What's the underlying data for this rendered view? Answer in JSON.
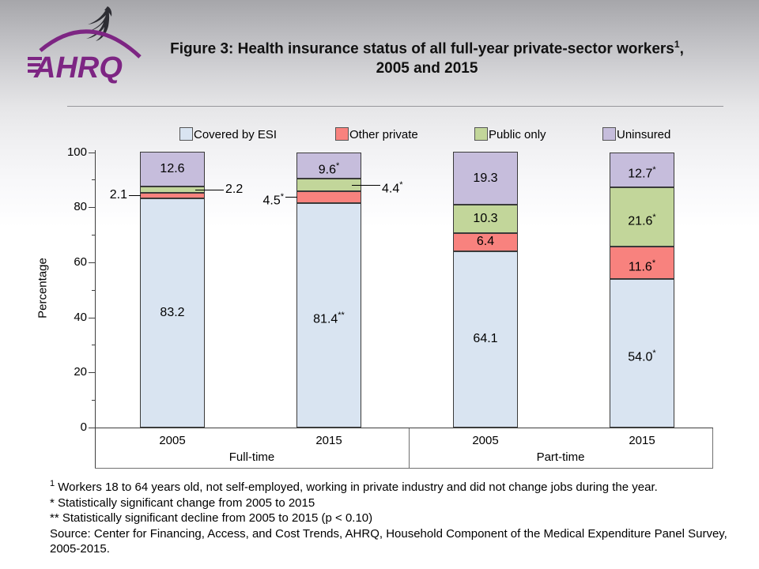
{
  "header": {
    "logo_org": "AHRQ",
    "title_line1": "Figure 3: Health insurance status of all full-year private-sector workers",
    "title_sup": "1",
    "title_after_sup": ",",
    "title_line2": "2005 and 2015"
  },
  "legend": [
    {
      "label": "Covered by ESI",
      "color": "#D9E4F1"
    },
    {
      "label": "Other private",
      "color": "#F8827E"
    },
    {
      "label": "Public only",
      "color": "#C2D69A"
    },
    {
      "label": "Uninsured",
      "color": "#C6BDDC"
    }
  ],
  "chart_data": {
    "type": "bar",
    "subtype": "stacked-vertical",
    "ylabel": "Percentage",
    "ylim": [
      0,
      100
    ],
    "yticks_major": [
      0,
      20,
      40,
      60,
      80,
      100
    ],
    "yticks_minor": [
      10,
      30,
      50,
      70,
      90
    ],
    "grid": false,
    "legend_position": "top",
    "group_labels": [
      "Full-time",
      "Part-time"
    ],
    "categories": [
      "2005",
      "2015",
      "2005",
      "2015"
    ],
    "series_order": [
      "Covered by ESI",
      "Other private",
      "Public only",
      "Uninsured"
    ],
    "series_colors": {
      "Covered by ESI": "#D9E4F1",
      "Other private": "#F8827E",
      "Public only": "#C2D69A",
      "Uninsured": "#C6BDDC"
    },
    "bars": [
      {
        "group": "Full-time",
        "category": "2005",
        "segments": [
          {
            "series": "Covered by ESI",
            "value": 83.2,
            "label": "83.2",
            "sup": "",
            "placement": "inside"
          },
          {
            "series": "Other private",
            "value": 2.1,
            "label": "2.1",
            "sup": "",
            "placement": "callout-left"
          },
          {
            "series": "Public only",
            "value": 2.2,
            "label": "2.2",
            "sup": "",
            "placement": "callout-right"
          },
          {
            "series": "Uninsured",
            "value": 12.6,
            "label": "12.6",
            "sup": "",
            "placement": "inside"
          }
        ]
      },
      {
        "group": "Full-time",
        "category": "2015",
        "segments": [
          {
            "series": "Covered by ESI",
            "value": 81.4,
            "label": "81.4",
            "sup": "**",
            "placement": "inside"
          },
          {
            "series": "Other private",
            "value": 4.5,
            "label": "4.5",
            "sup": "*",
            "placement": "callout-left"
          },
          {
            "series": "Public only",
            "value": 4.4,
            "label": "4.4",
            "sup": "*",
            "placement": "callout-right"
          },
          {
            "series": "Uninsured",
            "value": 9.6,
            "label": "9.6",
            "sup": "*",
            "placement": "inside"
          }
        ]
      },
      {
        "group": "Part-time",
        "category": "2005",
        "segments": [
          {
            "series": "Covered by ESI",
            "value": 64.1,
            "label": "64.1",
            "sup": "",
            "placement": "inside"
          },
          {
            "series": "Other private",
            "value": 6.4,
            "label": "6.4",
            "sup": "",
            "placement": "inside"
          },
          {
            "series": "Public only",
            "value": 10.3,
            "label": "10.3",
            "sup": "",
            "placement": "inside"
          },
          {
            "series": "Uninsured",
            "value": 19.3,
            "label": "19.3",
            "sup": "",
            "placement": "inside"
          }
        ]
      },
      {
        "group": "Part-time",
        "category": "2015",
        "segments": [
          {
            "series": "Covered by ESI",
            "value": 54.0,
            "label": "54.0",
            "sup": "*",
            "placement": "inside"
          },
          {
            "series": "Other private",
            "value": 11.6,
            "label": "11.6",
            "sup": "*",
            "placement": "inside"
          },
          {
            "series": "Public only",
            "value": 21.6,
            "label": "21.6",
            "sup": "*",
            "placement": "inside"
          },
          {
            "series": "Uninsured",
            "value": 12.7,
            "label": "12.7",
            "sup": "*",
            "placement": "inside"
          }
        ]
      }
    ]
  },
  "footnotes": [
    {
      "sup": "1",
      "text": " Workers 18 to 64 years old, not self-employed, working in private industry and did not change jobs during the year."
    },
    {
      "sup": "",
      "text": "*  Statistically significant change from 2005 to 2015"
    },
    {
      "sup": "",
      "text": "** Statistically significant decline from 2005 to 2015 (p < 0.10)"
    },
    {
      "sup": "",
      "text": "Source: Center for Financing, Access, and Cost Trends, AHRQ, Household Component of the Medical Expenditure Panel Survey, 2005-2015."
    }
  ]
}
